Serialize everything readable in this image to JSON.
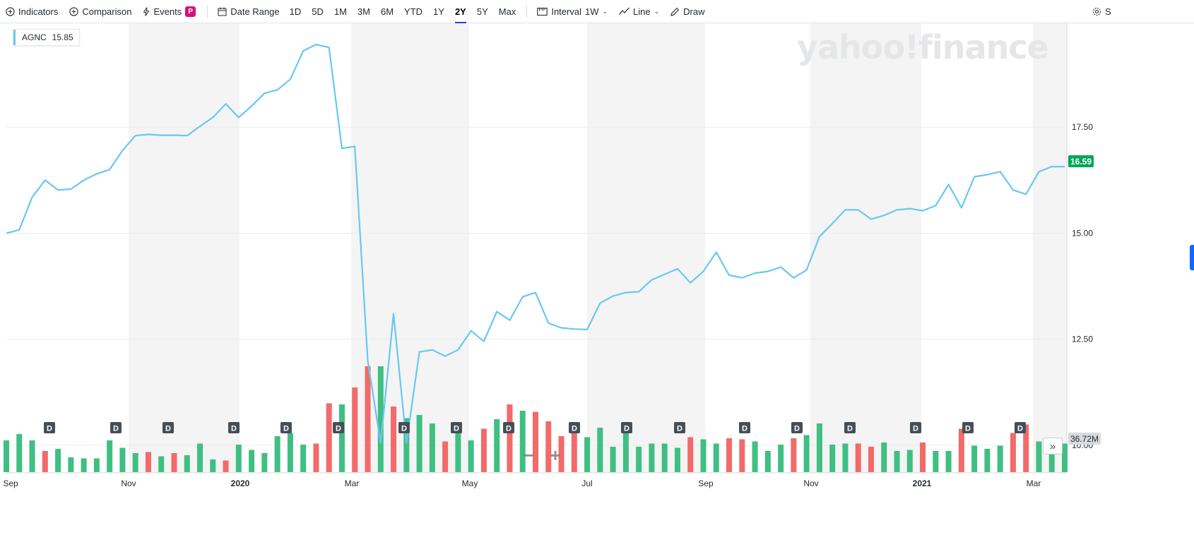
{
  "toolbar": {
    "indicators": "Indicators",
    "comparison": "Comparison",
    "events": "Events",
    "events_badge": "P",
    "date_range": "Date Range",
    "ranges": [
      "1D",
      "5D",
      "1M",
      "3M",
      "6M",
      "YTD",
      "1Y",
      "2Y",
      "5Y",
      "Max"
    ],
    "active_range": "2Y",
    "interval_label": "Interval",
    "interval_value": "1W",
    "chart_type": "Line",
    "draw": "Draw",
    "settings_partial": "S"
  },
  "legend": {
    "symbol": "AGNC",
    "value": "15.85",
    "color": "#68c8f2"
  },
  "watermark": "yahoo!finance",
  "last_price": "16.59",
  "volume_label": "36.72M",
  "colors": {
    "line": "#68c8f2",
    "volume_up": "#3fbf82",
    "volume_down": "#f26a6a",
    "price_badge": "#00a65a",
    "shade": "#f4f4f4"
  },
  "chart_data": {
    "type": "line",
    "title": "",
    "series": [
      {
        "name": "AGNC",
        "values": [
          15.0,
          15.08,
          15.85,
          16.25,
          16.02,
          16.04,
          16.25,
          16.4,
          16.5,
          16.95,
          17.3,
          17.33,
          17.31,
          17.31,
          17.3,
          17.52,
          17.73,
          18.05,
          17.73,
          18.0,
          18.3,
          18.38,
          18.63,
          19.3,
          19.45,
          19.38,
          17.0,
          17.05,
          12.0,
          10.05,
          13.1,
          10.05,
          12.2,
          12.25,
          12.1,
          12.25,
          12.7,
          12.45,
          13.15,
          12.95,
          13.5,
          13.6,
          12.88,
          12.77,
          12.74,
          12.73,
          13.35,
          13.52,
          13.6,
          13.62,
          13.9,
          14.03,
          14.16,
          13.83,
          14.1,
          14.55,
          14.01,
          13.95,
          14.06,
          14.1,
          14.2,
          13.95,
          14.13,
          14.92,
          15.23,
          15.55,
          15.55,
          15.33,
          15.42,
          15.55,
          15.58,
          15.53,
          15.65,
          16.15,
          15.6,
          16.33,
          16.38,
          16.45,
          16.02,
          15.92,
          16.45,
          16.57,
          16.57
        ]
      }
    ],
    "y_ticks": [
      "17.50",
      "15.00",
      "12.50",
      "10.00"
    ],
    "ylim": [
      9.35,
      19.95
    ],
    "x_ticks": [
      "Sep",
      "Nov",
      "2020",
      "Mar",
      "May",
      "Jul",
      "Sep",
      "Nov",
      "2021",
      "Mar"
    ],
    "bold_x_ticks": [
      "2020",
      "2021"
    ],
    "volume": {
      "values": [
        0.3,
        0.36,
        0.3,
        0.2,
        0.22,
        0.14,
        0.13,
        0.13,
        0.3,
        0.23,
        0.18,
        0.19,
        0.15,
        0.18,
        0.16,
        0.27,
        0.12,
        0.11,
        0.26,
        0.21,
        0.18,
        0.34,
        0.37,
        0.26,
        0.27,
        0.65,
        0.64,
        0.8,
        1.0,
        1.0,
        0.62,
        0.51,
        0.54,
        0.46,
        0.29,
        0.42,
        0.3,
        0.41,
        0.5,
        0.64,
        0.58,
        0.57,
        0.48,
        0.34,
        0.41,
        0.33,
        0.42,
        0.24,
        0.46,
        0.24,
        0.27,
        0.27,
        0.23,
        0.33,
        0.31,
        0.27,
        0.32,
        0.31,
        0.29,
        0.2,
        0.26,
        0.32,
        0.35,
        0.46,
        0.26,
        0.27,
        0.27,
        0.24,
        0.28,
        0.2,
        0.21,
        0.28,
        0.2,
        0.2,
        0.41,
        0.25,
        0.22,
        0.25,
        0.37,
        0.45,
        0.29,
        0.25,
        0.27
      ],
      "up": [
        1,
        1,
        1,
        0,
        1,
        1,
        1,
        1,
        1,
        1,
        1,
        0,
        1,
        0,
        1,
        1,
        1,
        0,
        1,
        1,
        1,
        1,
        1,
        1,
        0,
        0,
        1,
        0,
        0,
        1,
        0,
        1,
        1,
        1,
        0,
        1,
        1,
        0,
        1,
        0,
        1,
        0,
        0,
        0,
        0,
        1,
        1,
        1,
        1,
        1,
        1,
        1,
        1,
        0,
        1,
        1,
        0,
        0,
        1,
        1,
        1,
        0,
        1,
        1,
        1,
        1,
        0,
        0,
        1,
        1,
        1,
        0,
        1,
        1,
        0,
        1,
        1,
        1,
        0,
        0,
        1,
        1,
        1
      ]
    },
    "dividend_marker": "D",
    "dividend_count": 20
  }
}
